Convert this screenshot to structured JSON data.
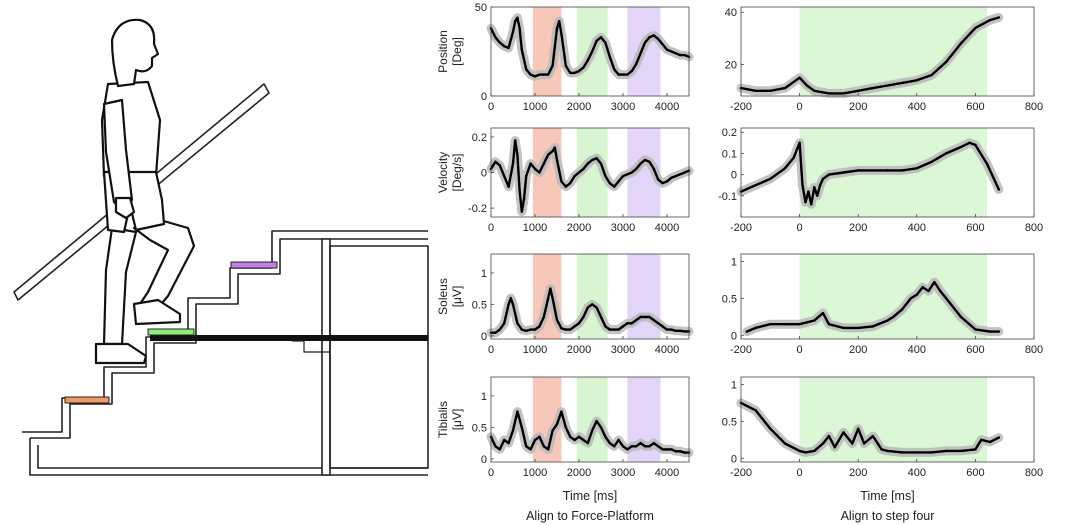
{
  "chart_data": [
    {
      "type": "line",
      "column": "left",
      "ylabel": "Position [Deg]",
      "xlim": [
        0,
        4500
      ],
      "ylim": [
        0,
        50
      ],
      "yticks": [
        0,
        50
      ],
      "xticks": [
        0,
        1000,
        2000,
        3000,
        4000
      ],
      "shaded_regions": [
        {
          "x": [
            950,
            1600
          ],
          "color": "#f7c7b9"
        },
        {
          "x": [
            1950,
            2650
          ],
          "color": "#d8f5d2"
        },
        {
          "x": [
            3100,
            3850
          ],
          "color": "#e3d5f7"
        }
      ],
      "series": [
        {
          "x": [
            0,
            100,
            200,
            300,
            400,
            500,
            550,
            600,
            650,
            700,
            800,
            900,
            1000,
            1100,
            1200,
            1300,
            1400,
            1500,
            1550,
            1600,
            1700,
            1800,
            1900,
            2000,
            2100,
            2200,
            2300,
            2400,
            2500,
            2600,
            2700,
            2800,
            2900,
            3000,
            3100,
            3200,
            3300,
            3400,
            3500,
            3600,
            3700,
            3800,
            3900,
            4000,
            4100,
            4200,
            4300,
            4400,
            4500
          ],
          "y": [
            38,
            33,
            30,
            28,
            27,
            36,
            42,
            44,
            38,
            26,
            15,
            12,
            11,
            12,
            12,
            12,
            17,
            38,
            42,
            35,
            17,
            13,
            13,
            14,
            16,
            20,
            25,
            31,
            33,
            30,
            22,
            15,
            12,
            12,
            12,
            14,
            18,
            24,
            30,
            33,
            34,
            32,
            29,
            26,
            25,
            24,
            23,
            23,
            22
          ]
        }
      ]
    },
    {
      "type": "line",
      "column": "left",
      "ylabel": "Velocity [Deg/s]",
      "xlim": [
        0,
        4500
      ],
      "ylim": [
        -0.25,
        0.25
      ],
      "yticks": [
        -0.2,
        0,
        0.2
      ],
      "xticks": [
        0,
        1000,
        2000,
        3000,
        4000
      ],
      "shaded_regions": [
        {
          "x": [
            950,
            1600
          ],
          "color": "#f7c7b9"
        },
        {
          "x": [
            1950,
            2650
          ],
          "color": "#d8f5d2"
        },
        {
          "x": [
            3100,
            3850
          ],
          "color": "#e3d5f7"
        }
      ],
      "series": [
        {
          "x": [
            0,
            100,
            200,
            300,
            400,
            500,
            550,
            600,
            650,
            700,
            750,
            800,
            900,
            1000,
            1100,
            1200,
            1300,
            1400,
            1450,
            1500,
            1600,
            1700,
            1800,
            1900,
            2000,
            2100,
            2200,
            2300,
            2400,
            2500,
            2600,
            2700,
            2800,
            2900,
            3000,
            3100,
            3200,
            3300,
            3400,
            3500,
            3600,
            3700,
            3800,
            3900,
            4000,
            4100,
            4200,
            4300,
            4400,
            4500
          ],
          "y": [
            0.02,
            0.06,
            0.04,
            -0.02,
            -0.08,
            0.05,
            0.18,
            0.1,
            -0.1,
            -0.22,
            -0.15,
            -0.02,
            0.05,
            0.02,
            0.0,
            0.05,
            0.1,
            0.12,
            0.14,
            0.07,
            -0.05,
            -0.08,
            -0.06,
            -0.02,
            0.0,
            0.02,
            0.05,
            0.07,
            0.08,
            0.05,
            -0.02,
            -0.06,
            -0.08,
            -0.05,
            -0.02,
            -0.01,
            0.0,
            0.02,
            0.05,
            0.07,
            0.06,
            0.02,
            -0.04,
            -0.06,
            -0.05,
            -0.03,
            -0.02,
            -0.01,
            0.0,
            0.01
          ]
        }
      ]
    },
    {
      "type": "line",
      "column": "left",
      "ylabel": "Soleus [μV]",
      "xlim": [
        0,
        4500
      ],
      "ylim": [
        -0.05,
        1.3
      ],
      "yticks": [
        0,
        0.5,
        1
      ],
      "xticks": [
        0,
        1000,
        2000,
        3000,
        4000
      ],
      "shaded_regions": [
        {
          "x": [
            950,
            1600
          ],
          "color": "#f7c7b9"
        },
        {
          "x": [
            1950,
            2650
          ],
          "color": "#d8f5d2"
        },
        {
          "x": [
            3100,
            3850
          ],
          "color": "#e3d5f7"
        }
      ],
      "series": [
        {
          "x": [
            0,
            100,
            200,
            300,
            400,
            450,
            500,
            600,
            700,
            800,
            900,
            1000,
            1100,
            1200,
            1300,
            1350,
            1400,
            1500,
            1600,
            1700,
            1800,
            1900,
            2000,
            2100,
            2200,
            2300,
            2400,
            2500,
            2600,
            2700,
            2800,
            2900,
            3000,
            3100,
            3200,
            3300,
            3400,
            3500,
            3600,
            3700,
            3800,
            3900,
            4000,
            4100,
            4200,
            4300,
            4400,
            4500
          ],
          "y": [
            0.05,
            0.05,
            0.1,
            0.2,
            0.5,
            0.6,
            0.5,
            0.2,
            0.1,
            0.08,
            0.1,
            0.1,
            0.15,
            0.3,
            0.6,
            0.75,
            0.6,
            0.25,
            0.12,
            0.1,
            0.1,
            0.15,
            0.2,
            0.3,
            0.45,
            0.5,
            0.45,
            0.3,
            0.15,
            0.1,
            0.1,
            0.1,
            0.15,
            0.2,
            0.2,
            0.25,
            0.3,
            0.3,
            0.3,
            0.25,
            0.2,
            0.15,
            0.1,
            0.1,
            0.08,
            0.08,
            0.07,
            0.07
          ]
        }
      ]
    },
    {
      "type": "line",
      "column": "left",
      "ylabel": "Tibialis [μV]",
      "xlim": [
        0,
        4500
      ],
      "ylim": [
        -0.05,
        1.3
      ],
      "yticks": [
        0,
        0.5,
        1
      ],
      "xticks": [
        0,
        1000,
        2000,
        3000,
        4000
      ],
      "xlabel": "Time [ms]",
      "caption": "Align to Force-Platform",
      "shaded_regions": [
        {
          "x": [
            950,
            1600
          ],
          "color": "#f7c7b9"
        },
        {
          "x": [
            1950,
            2650
          ],
          "color": "#d8f5d2"
        },
        {
          "x": [
            3100,
            3850
          ],
          "color": "#e3d5f7"
        }
      ],
      "series": [
        {
          "x": [
            0,
            100,
            200,
            300,
            400,
            500,
            600,
            700,
            800,
            900,
            1000,
            1100,
            1200,
            1300,
            1400,
            1500,
            1600,
            1700,
            1800,
            1900,
            2000,
            2100,
            2200,
            2300,
            2400,
            2500,
            2600,
            2700,
            2800,
            2900,
            3000,
            3100,
            3200,
            3300,
            3400,
            3500,
            3600,
            3700,
            3800,
            3900,
            4000,
            4100,
            4200,
            4300,
            4400,
            4500
          ],
          "y": [
            0.35,
            0.2,
            0.15,
            0.3,
            0.25,
            0.45,
            0.75,
            0.5,
            0.2,
            0.15,
            0.3,
            0.35,
            0.2,
            0.15,
            0.45,
            0.55,
            0.75,
            0.5,
            0.35,
            0.3,
            0.35,
            0.3,
            0.25,
            0.45,
            0.6,
            0.5,
            0.35,
            0.25,
            0.2,
            0.3,
            0.2,
            0.15,
            0.2,
            0.2,
            0.25,
            0.2,
            0.2,
            0.25,
            0.2,
            0.15,
            0.15,
            0.15,
            0.12,
            0.12,
            0.1,
            0.1
          ]
        }
      ]
    },
    {
      "type": "line",
      "column": "right",
      "xlim": [
        -200,
        800
      ],
      "ylim": [
        8,
        42
      ],
      "yticks": [
        20,
        40
      ],
      "xticks": [
        -200,
        0,
        200,
        400,
        600,
        800
      ],
      "shaded_regions": [
        {
          "x": [
            0,
            640
          ],
          "color": "#dbf7d6"
        }
      ],
      "series": [
        {
          "x": [
            -200,
            -150,
            -100,
            -50,
            0,
            25,
            50,
            100,
            150,
            200,
            250,
            300,
            350,
            400,
            450,
            500,
            550,
            600,
            650,
            680
          ],
          "y": [
            11,
            10,
            10,
            11,
            15,
            12,
            10,
            9,
            9,
            10,
            11,
            12,
            13,
            14,
            16,
            21,
            28,
            34,
            37,
            38
          ]
        }
      ]
    },
    {
      "type": "line",
      "column": "right",
      "xlim": [
        -200,
        800
      ],
      "ylim": [
        -0.2,
        0.22
      ],
      "yticks": [
        -0.1,
        0,
        0.1,
        0.2
      ],
      "xticks": [
        -200,
        0,
        200,
        400,
        600,
        800
      ],
      "shaded_regions": [
        {
          "x": [
            0,
            640
          ],
          "color": "#dbf7d6"
        }
      ],
      "series": [
        {
          "x": [
            -200,
            -150,
            -100,
            -50,
            -20,
            0,
            10,
            20,
            30,
            40,
            50,
            60,
            70,
            80,
            100,
            150,
            200,
            300,
            350,
            400,
            450,
            500,
            550,
            580,
            600,
            640,
            680
          ],
          "y": [
            -0.08,
            -0.05,
            -0.02,
            0.03,
            0.08,
            0.15,
            -0.05,
            -0.13,
            -0.08,
            -0.14,
            -0.06,
            -0.1,
            -0.05,
            -0.02,
            0.0,
            0.01,
            0.02,
            0.02,
            0.02,
            0.03,
            0.06,
            0.1,
            0.13,
            0.15,
            0.14,
            0.05,
            -0.07
          ]
        }
      ]
    },
    {
      "type": "line",
      "column": "right",
      "xlim": [
        -200,
        800
      ],
      "ylim": [
        -0.05,
        1.1
      ],
      "yticks": [
        0,
        0.5,
        1
      ],
      "xticks": [
        -200,
        0,
        200,
        400,
        600,
        800
      ],
      "shaded_regions": [
        {
          "x": [
            0,
            640
          ],
          "color": "#dbf7d6"
        }
      ],
      "series": [
        {
          "x": [
            -180,
            -150,
            -100,
            -50,
            0,
            50,
            80,
            100,
            150,
            200,
            250,
            300,
            320,
            350,
            380,
            400,
            420,
            440,
            460,
            480,
            500,
            550,
            600,
            650,
            680
          ],
          "y": [
            0.05,
            0.1,
            0.15,
            0.15,
            0.15,
            0.2,
            0.3,
            0.15,
            0.1,
            0.1,
            0.12,
            0.2,
            0.25,
            0.35,
            0.5,
            0.55,
            0.65,
            0.6,
            0.72,
            0.6,
            0.5,
            0.25,
            0.08,
            0.05,
            0.05
          ]
        }
      ]
    },
    {
      "type": "line",
      "column": "right",
      "xlim": [
        -200,
        800
      ],
      "ylim": [
        -0.05,
        1.1
      ],
      "yticks": [
        0,
        0.5,
        1
      ],
      "xticks": [
        -200,
        0,
        200,
        400,
        600,
        800
      ],
      "xlabel": "Time [ms]",
      "caption": "Align to step four",
      "shaded_regions": [
        {
          "x": [
            0,
            640
          ],
          "color": "#dbf7d6"
        }
      ],
      "series": [
        {
          "x": [
            -200,
            -150,
            -100,
            -50,
            0,
            20,
            50,
            80,
            100,
            120,
            150,
            180,
            200,
            220,
            250,
            280,
            300,
            350,
            400,
            450,
            500,
            550,
            600,
            620,
            650,
            680
          ],
          "y": [
            0.75,
            0.65,
            0.4,
            0.2,
            0.1,
            0.08,
            0.1,
            0.2,
            0.3,
            0.15,
            0.35,
            0.2,
            0.4,
            0.2,
            0.3,
            0.12,
            0.1,
            0.08,
            0.08,
            0.08,
            0.1,
            0.1,
            0.12,
            0.25,
            0.22,
            0.28
          ]
        }
      ]
    }
  ]
}
